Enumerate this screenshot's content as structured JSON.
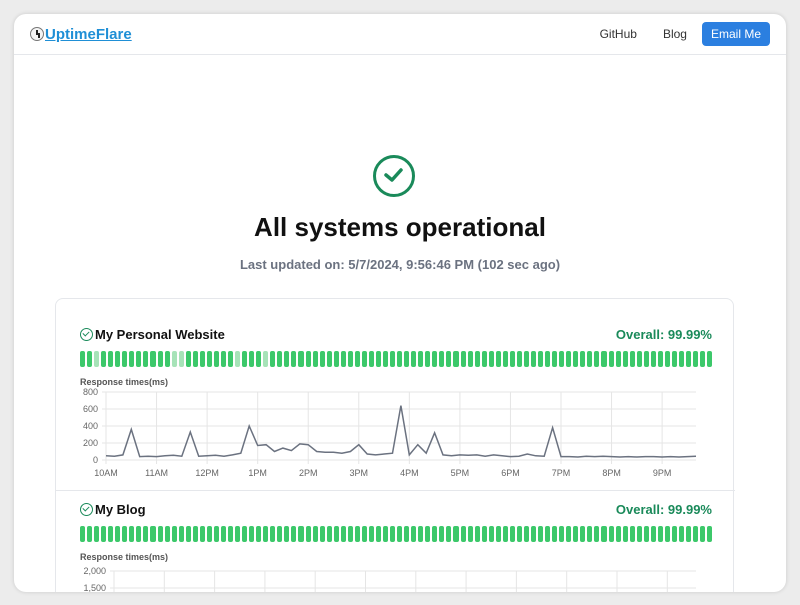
{
  "nav": {
    "logo": "UptimeFlare",
    "links": [
      "GitHub",
      "Blog"
    ],
    "email_button": "Email Me"
  },
  "status": {
    "icon": "check-circle-icon",
    "title": "All systems operational",
    "last_updated": "Last updated on: 5/7/2024, 9:56:46 PM (102 sec ago)"
  },
  "colors": {
    "accent": "#2b7fe0",
    "ok": "#1a8a5a",
    "bar_up": "#3cc86a",
    "bar_partial": "#a7e3b8",
    "line": "#6b7280"
  },
  "monitors": [
    {
      "name": "My Personal Website",
      "overall": "Overall: 99.99%",
      "bar_count": 90,
      "partial_bars": [
        2,
        13,
        14,
        22,
        26
      ],
      "response_label": "Response times(ms)"
    },
    {
      "name": "My Blog",
      "overall": "Overall: 99.99%",
      "bar_count": 90,
      "partial_bars": [],
      "response_label": "Response times(ms)"
    }
  ],
  "chart_data": [
    {
      "type": "line",
      "ylabel": "",
      "ylim": [
        0,
        800
      ],
      "yticks": [
        0,
        200,
        400,
        600,
        800
      ],
      "xticks": [
        "10AM",
        "11AM",
        "12PM",
        "1PM",
        "2PM",
        "3PM",
        "4PM",
        "5PM",
        "6PM",
        "7PM",
        "8PM",
        "9PM"
      ],
      "grid": true,
      "x": [
        "10:00",
        "10:10",
        "10:20",
        "10:30",
        "10:40",
        "10:50",
        "11:00",
        "11:10",
        "11:20",
        "11:30",
        "11:40",
        "11:50",
        "12:00",
        "12:10",
        "12:20",
        "12:30",
        "12:40",
        "12:50",
        "13:00",
        "13:10",
        "13:20",
        "13:30",
        "13:40",
        "13:50",
        "14:00",
        "14:10",
        "14:20",
        "14:30",
        "14:40",
        "14:50",
        "15:00",
        "15:10",
        "15:20",
        "15:30",
        "15:40",
        "15:50",
        "16:00",
        "16:10",
        "16:20",
        "16:30",
        "16:40",
        "16:50",
        "17:00",
        "17:10",
        "17:20",
        "17:30",
        "17:40",
        "17:50",
        "18:00",
        "18:10",
        "18:20",
        "18:30",
        "18:40",
        "18:50",
        "19:00",
        "19:10",
        "19:20",
        "19:30",
        "19:40",
        "19:50",
        "20:00",
        "20:10",
        "20:20",
        "20:30",
        "20:40",
        "20:50",
        "21:00",
        "21:10",
        "21:20",
        "21:30",
        "21:40",
        "21:50",
        "21:56"
      ],
      "y": [
        50,
        45,
        60,
        360,
        40,
        45,
        40,
        50,
        55,
        45,
        330,
        45,
        50,
        55,
        45,
        60,
        80,
        400,
        170,
        180,
        100,
        140,
        110,
        190,
        180,
        100,
        90,
        90,
        80,
        100,
        180,
        70,
        60,
        70,
        80,
        640,
        60,
        180,
        80,
        320,
        60,
        50,
        60,
        55,
        60,
        45,
        60,
        50,
        40,
        45,
        70,
        50,
        45,
        380,
        40,
        40,
        35,
        45,
        40,
        45,
        40,
        35,
        40,
        35,
        40,
        40,
        35,
        40,
        35,
        40,
        45,
        40,
        35
      ]
    },
    {
      "type": "line",
      "ylabel": "",
      "yticks_visible": [
        "2,000",
        "1,500"
      ]
    }
  ]
}
